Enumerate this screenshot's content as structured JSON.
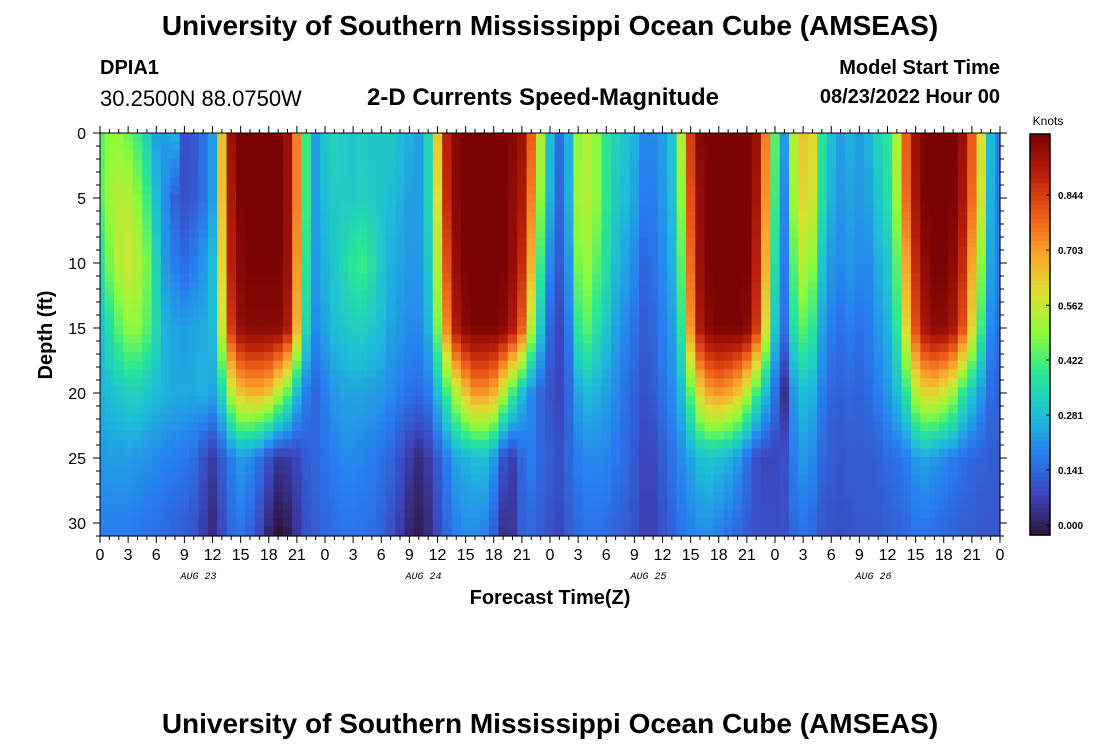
{
  "page": {
    "title": "University of Southern Mississippi Ocean Cube (AMSEAS)",
    "title_bottom": "University of Southern Mississippi Ocean Cube (AMSEAS)",
    "station_id": "DPIA1",
    "station_coords": "30.2500N  88.0750W",
    "plot_title": "2-D Currents Speed-Magnitude",
    "model_start_label": "Model Start Time",
    "model_start_value": "08/23/2022 Hour 00"
  },
  "chart_data": {
    "type": "heatmap",
    "title": "2-D Currents Speed-Magnitude",
    "xlabel": "Forecast Time(Z)",
    "ylabel": "Depth (ft)",
    "x_range_hours": [
      0,
      96
    ],
    "x_tick_step_hours": 3,
    "x_tick_labels": [
      "0",
      "3",
      "6",
      "9",
      "12",
      "15",
      "18",
      "21",
      "0",
      "3",
      "6",
      "9",
      "12",
      "15",
      "18",
      "21",
      "0",
      "3",
      "6",
      "9",
      "12",
      "15",
      "18",
      "21",
      "0",
      "3",
      "6",
      "9",
      "12",
      "15",
      "18",
      "21",
      "0"
    ],
    "day_labels": [
      {
        "label": "AUG 23",
        "hour": 12
      },
      {
        "label": "AUG 24",
        "hour": 36
      },
      {
        "label": "AUG 25",
        "hour": 60
      },
      {
        "label": "AUG 26",
        "hour": 84
      }
    ],
    "y_range_ft": [
      0,
      31
    ],
    "y_ticks": [
      0,
      5,
      10,
      15,
      20,
      25,
      30
    ],
    "y_inverted": true,
    "colorbar": {
      "label": "Knots",
      "ticks": [
        0.0,
        0.141,
        0.281,
        0.422,
        0.562,
        0.703,
        0.844
      ],
      "tick_labels": [
        "0.000",
        "0.141",
        "0.281",
        "0.422",
        "0.562",
        "0.703",
        "0.844"
      ],
      "range": [
        0,
        1.0
      ]
    },
    "grid_hours": [
      0,
      1,
      2,
      3,
      4,
      5,
      6,
      7,
      8,
      9,
      10,
      11,
      12,
      13,
      14,
      15,
      16,
      17,
      18,
      19,
      20,
      21,
      22,
      23,
      24,
      25,
      26,
      27,
      28,
      29,
      30,
      31,
      32,
      33,
      34,
      35,
      36,
      37,
      38,
      39,
      40,
      41,
      42,
      43,
      44,
      45,
      46,
      47,
      48,
      49,
      50,
      51,
      52,
      53,
      54,
      55,
      56,
      57,
      58,
      59,
      60,
      61,
      62,
      63,
      64,
      65,
      66,
      67,
      68,
      69,
      70,
      71,
      72,
      73,
      74,
      75,
      76,
      77,
      78,
      79,
      80,
      81,
      82,
      83,
      84,
      85,
      86,
      87,
      88,
      89,
      90,
      91,
      92,
      93,
      94,
      95,
      96
    ],
    "grid_depths_ft": [
      0,
      5,
      10,
      15,
      20,
      25,
      31
    ],
    "speed_knots": [
      [
        0.45,
        0.5,
        0.5,
        0.47,
        0.42,
        0.35,
        0.25,
        0.25,
        0.28,
        0.12,
        0.13,
        0.18,
        0.25,
        0.65,
        0.95,
        1.0,
        1.0,
        1.0,
        1.0,
        1.0,
        0.95,
        0.75,
        0.42,
        0.25,
        0.32,
        0.35,
        0.33,
        0.32,
        0.33,
        0.32,
        0.32,
        0.33,
        0.3,
        0.28,
        0.25,
        0.35,
        0.65,
        0.9,
        0.98,
        1.0,
        1.0,
        1.0,
        1.0,
        1.0,
        0.98,
        0.95,
        0.8,
        0.55,
        0.3,
        0.18,
        0.28,
        0.5,
        0.55,
        0.5,
        0.4,
        0.35,
        0.32,
        0.28,
        0.22,
        0.22,
        0.25,
        0.32,
        0.55,
        0.85,
        0.98,
        1.0,
        1.0,
        1.0,
        1.0,
        1.0,
        0.95,
        0.75,
        0.45,
        0.25,
        0.55,
        0.65,
        0.62,
        0.4,
        0.3,
        0.25,
        0.28,
        0.25,
        0.28,
        0.35,
        0.4,
        0.55,
        0.8,
        0.95,
        1.0,
        1.0,
        1.0,
        1.0,
        0.95,
        0.8,
        0.6,
        0.3,
        0.2
      ],
      [
        0.45,
        0.52,
        0.55,
        0.55,
        0.5,
        0.42,
        0.3,
        0.22,
        0.15,
        0.12,
        0.14,
        0.18,
        0.25,
        0.65,
        0.92,
        1.0,
        1.0,
        1.0,
        1.0,
        1.0,
        0.95,
        0.75,
        0.42,
        0.25,
        0.3,
        0.33,
        0.33,
        0.33,
        0.34,
        0.33,
        0.32,
        0.3,
        0.28,
        0.25,
        0.25,
        0.35,
        0.6,
        0.88,
        0.98,
        1.0,
        1.0,
        1.0,
        1.0,
        1.0,
        0.97,
        0.92,
        0.75,
        0.5,
        0.28,
        0.16,
        0.28,
        0.52,
        0.55,
        0.5,
        0.4,
        0.33,
        0.3,
        0.26,
        0.2,
        0.2,
        0.24,
        0.3,
        0.5,
        0.82,
        0.96,
        1.0,
        1.0,
        1.0,
        1.0,
        1.0,
        0.93,
        0.72,
        0.42,
        0.22,
        0.52,
        0.62,
        0.58,
        0.38,
        0.28,
        0.24,
        0.26,
        0.24,
        0.26,
        0.32,
        0.38,
        0.52,
        0.78,
        0.93,
        1.0,
        1.0,
        1.0,
        1.0,
        0.93,
        0.78,
        0.58,
        0.28,
        0.2
      ],
      [
        0.38,
        0.48,
        0.55,
        0.58,
        0.55,
        0.48,
        0.35,
        0.24,
        0.2,
        0.17,
        0.2,
        0.24,
        0.3,
        0.62,
        0.9,
        0.98,
        1.0,
        1.0,
        1.0,
        1.0,
        0.95,
        0.72,
        0.4,
        0.24,
        0.28,
        0.32,
        0.36,
        0.4,
        0.42,
        0.38,
        0.32,
        0.28,
        0.26,
        0.24,
        0.24,
        0.32,
        0.55,
        0.82,
        0.96,
        1.0,
        1.0,
        1.0,
        1.0,
        1.0,
        0.96,
        0.88,
        0.68,
        0.42,
        0.22,
        0.14,
        0.24,
        0.48,
        0.52,
        0.45,
        0.38,
        0.3,
        0.26,
        0.22,
        0.16,
        0.18,
        0.22,
        0.28,
        0.45,
        0.78,
        0.95,
        1.0,
        1.0,
        1.0,
        1.0,
        1.0,
        0.9,
        0.68,
        0.38,
        0.2,
        0.45,
        0.55,
        0.5,
        0.32,
        0.24,
        0.22,
        0.24,
        0.22,
        0.22,
        0.28,
        0.32,
        0.45,
        0.7,
        0.88,
        0.97,
        1.0,
        1.0,
        0.97,
        0.88,
        0.7,
        0.5,
        0.26,
        0.2
      ],
      [
        0.3,
        0.38,
        0.45,
        0.5,
        0.5,
        0.45,
        0.36,
        0.28,
        0.26,
        0.25,
        0.26,
        0.27,
        0.3,
        0.58,
        0.86,
        0.96,
        0.98,
        0.98,
        0.98,
        0.98,
        0.92,
        0.68,
        0.36,
        0.22,
        0.26,
        0.3,
        0.32,
        0.34,
        0.34,
        0.32,
        0.3,
        0.26,
        0.24,
        0.22,
        0.22,
        0.28,
        0.48,
        0.74,
        0.92,
        0.98,
        1.0,
        1.0,
        1.0,
        0.98,
        0.92,
        0.8,
        0.55,
        0.32,
        0.16,
        0.1,
        0.2,
        0.4,
        0.45,
        0.38,
        0.32,
        0.26,
        0.22,
        0.18,
        0.14,
        0.16,
        0.2,
        0.25,
        0.4,
        0.72,
        0.92,
        0.98,
        1.0,
        1.0,
        1.0,
        0.98,
        0.86,
        0.6,
        0.32,
        0.18,
        0.38,
        0.45,
        0.4,
        0.26,
        0.2,
        0.18,
        0.2,
        0.18,
        0.2,
        0.24,
        0.28,
        0.4,
        0.62,
        0.82,
        0.93,
        0.97,
        0.97,
        0.93,
        0.82,
        0.62,
        0.42,
        0.22,
        0.18
      ],
      [
        0.28,
        0.3,
        0.32,
        0.34,
        0.34,
        0.32,
        0.3,
        0.28,
        0.27,
        0.27,
        0.27,
        0.28,
        0.26,
        0.36,
        0.55,
        0.65,
        0.68,
        0.68,
        0.65,
        0.55,
        0.45,
        0.3,
        0.2,
        0.16,
        0.2,
        0.24,
        0.26,
        0.26,
        0.26,
        0.25,
        0.24,
        0.22,
        0.2,
        0.18,
        0.17,
        0.2,
        0.3,
        0.42,
        0.55,
        0.65,
        0.72,
        0.72,
        0.68,
        0.55,
        0.42,
        0.3,
        0.22,
        0.16,
        0.12,
        0.1,
        0.16,
        0.26,
        0.3,
        0.28,
        0.25,
        0.22,
        0.18,
        0.15,
        0.12,
        0.14,
        0.18,
        0.22,
        0.3,
        0.45,
        0.62,
        0.7,
        0.72,
        0.7,
        0.65,
        0.55,
        0.42,
        0.3,
        0.18,
        0.06,
        0.24,
        0.3,
        0.28,
        0.2,
        0.16,
        0.15,
        0.16,
        0.15,
        0.17,
        0.2,
        0.24,
        0.3,
        0.4,
        0.55,
        0.62,
        0.62,
        0.58,
        0.52,
        0.4,
        0.32,
        0.24,
        0.17,
        0.15
      ],
      [
        0.24,
        0.25,
        0.25,
        0.25,
        0.24,
        0.23,
        0.22,
        0.21,
        0.2,
        0.19,
        0.17,
        0.12,
        0.08,
        0.14,
        0.2,
        0.24,
        0.22,
        0.18,
        0.12,
        0.07,
        0.08,
        0.1,
        0.14,
        0.16,
        0.18,
        0.2,
        0.22,
        0.22,
        0.21,
        0.2,
        0.18,
        0.16,
        0.12,
        0.08,
        0.05,
        0.08,
        0.14,
        0.2,
        0.26,
        0.28,
        0.3,
        0.3,
        0.24,
        0.12,
        0.09,
        0.16,
        0.2,
        0.16,
        0.14,
        0.12,
        0.16,
        0.2,
        0.22,
        0.22,
        0.21,
        0.19,
        0.17,
        0.14,
        0.1,
        0.1,
        0.14,
        0.18,
        0.22,
        0.26,
        0.3,
        0.32,
        0.3,
        0.28,
        0.24,
        0.18,
        0.12,
        0.1,
        0.1,
        0.12,
        0.2,
        0.24,
        0.22,
        0.16,
        0.14,
        0.13,
        0.14,
        0.14,
        0.14,
        0.15,
        0.17,
        0.18,
        0.2,
        0.24,
        0.26,
        0.24,
        0.22,
        0.2,
        0.18,
        0.16,
        0.15,
        0.14,
        0.14
      ],
      [
        0.2,
        0.2,
        0.2,
        0.2,
        0.19,
        0.18,
        0.17,
        0.16,
        0.15,
        0.14,
        0.12,
        0.08,
        0.05,
        0.1,
        0.16,
        0.18,
        0.15,
        0.1,
        0.04,
        0.0,
        0.02,
        0.07,
        0.12,
        0.14,
        0.16,
        0.17,
        0.18,
        0.18,
        0.18,
        0.17,
        0.15,
        0.12,
        0.08,
        0.04,
        0.02,
        0.05,
        0.1,
        0.16,
        0.2,
        0.22,
        0.22,
        0.2,
        0.14,
        0.06,
        0.07,
        0.14,
        0.16,
        0.14,
        0.12,
        0.1,
        0.14,
        0.16,
        0.18,
        0.18,
        0.17,
        0.15,
        0.14,
        0.12,
        0.09,
        0.09,
        0.12,
        0.15,
        0.18,
        0.2,
        0.22,
        0.22,
        0.2,
        0.18,
        0.16,
        0.14,
        0.12,
        0.12,
        0.12,
        0.12,
        0.16,
        0.18,
        0.16,
        0.13,
        0.12,
        0.12,
        0.12,
        0.13,
        0.13,
        0.13,
        0.14,
        0.15,
        0.16,
        0.18,
        0.18,
        0.17,
        0.16,
        0.15,
        0.14,
        0.14,
        0.13,
        0.13,
        0.13
      ]
    ]
  }
}
